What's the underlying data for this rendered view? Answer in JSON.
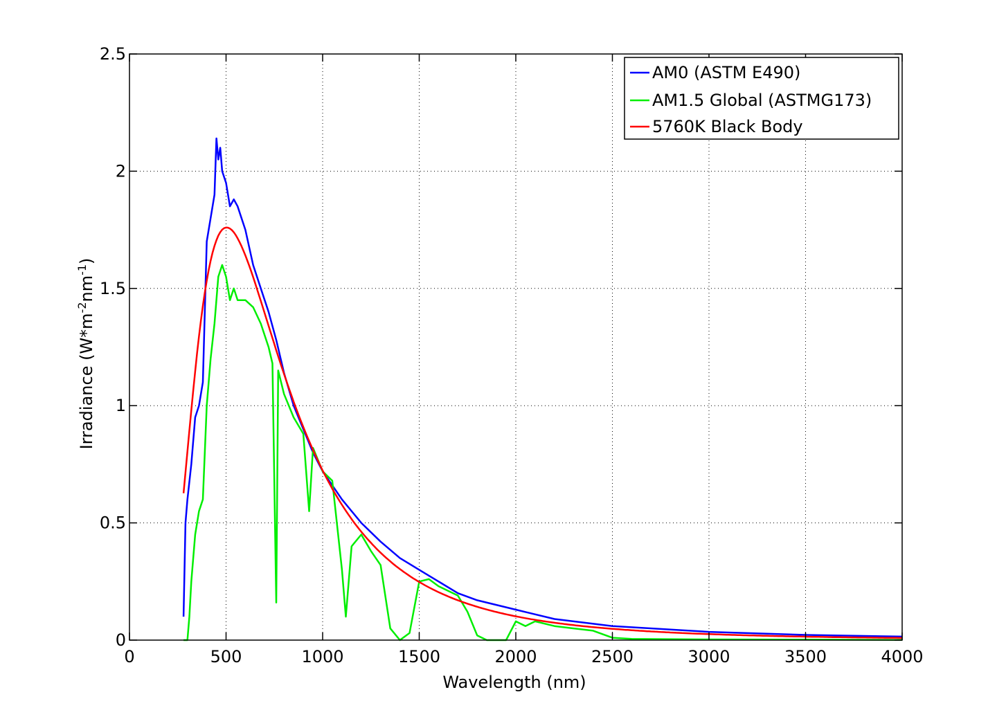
{
  "chart_data": {
    "type": "line",
    "title": "",
    "xlabel": "Wavelength (nm)",
    "ylabel": "Irradiance (W*m",
    "ylabel_sup1": "-2",
    "ylabel_mid": "nm",
    "ylabel_sup2": "-1",
    "ylabel_end": ")",
    "xlim": [
      0,
      4000
    ],
    "ylim": [
      0,
      2.5
    ],
    "xticks": [
      0,
      500,
      1000,
      1500,
      2000,
      2500,
      3000,
      3500,
      4000
    ],
    "yticks": [
      0,
      0.5,
      1,
      1.5,
      2,
      2.5
    ],
    "xtick_labels": [
      "0",
      "500",
      "1000",
      "1500",
      "2000",
      "2500",
      "3000",
      "3500",
      "4000"
    ],
    "ytick_labels": [
      "0",
      "0.5",
      "1",
      "1.5",
      "2",
      "2.5"
    ],
    "grid": true,
    "legend_position": "top-right",
    "series": [
      {
        "name": "AM0 (ASTM E490)",
        "color": "#0000ff",
        "x": [
          280,
          290,
          300,
          320,
          340,
          360,
          380,
          400,
          420,
          440,
          450,
          460,
          470,
          480,
          500,
          520,
          540,
          560,
          580,
          600,
          640,
          680,
          720,
          760,
          800,
          850,
          900,
          950,
          1000,
          1100,
          1200,
          1300,
          1400,
          1500,
          1600,
          1700,
          1800,
          2000,
          2200,
          2500,
          3000,
          3500,
          4000
        ],
        "y": [
          0.1,
          0.5,
          0.6,
          0.75,
          0.95,
          1.0,
          1.1,
          1.7,
          1.8,
          1.9,
          2.14,
          2.05,
          2.1,
          2.0,
          1.95,
          1.85,
          1.88,
          1.85,
          1.8,
          1.75,
          1.6,
          1.5,
          1.4,
          1.28,
          1.14,
          1.0,
          0.9,
          0.8,
          0.72,
          0.6,
          0.5,
          0.42,
          0.35,
          0.3,
          0.25,
          0.2,
          0.17,
          0.13,
          0.09,
          0.06,
          0.035,
          0.022,
          0.015
        ]
      },
      {
        "name": "AM1.5 Global (ASTMG173)",
        "color": "#00ee00",
        "x": [
          280,
          300,
          310,
          320,
          340,
          360,
          380,
          400,
          420,
          440,
          460,
          480,
          500,
          520,
          540,
          560,
          600,
          640,
          680,
          700,
          720,
          740,
          760,
          770,
          800,
          850,
          900,
          930,
          950,
          1000,
          1050,
          1100,
          1120,
          1150,
          1200,
          1250,
          1300,
          1350,
          1400,
          1450,
          1500,
          1550,
          1600,
          1700,
          1750,
          1800,
          1850,
          1950,
          2000,
          2050,
          2100,
          2200,
          2300,
          2400,
          2500,
          2600,
          3000,
          3500,
          4000
        ],
        "y": [
          0.0,
          0.0,
          0.1,
          0.25,
          0.45,
          0.55,
          0.6,
          1.0,
          1.2,
          1.35,
          1.55,
          1.6,
          1.55,
          1.45,
          1.5,
          1.45,
          1.45,
          1.42,
          1.35,
          1.3,
          1.25,
          1.18,
          0.16,
          1.15,
          1.05,
          0.95,
          0.88,
          0.55,
          0.82,
          0.72,
          0.68,
          0.3,
          0.1,
          0.4,
          0.45,
          0.38,
          0.32,
          0.05,
          0.0,
          0.03,
          0.25,
          0.26,
          0.23,
          0.19,
          0.12,
          0.02,
          0.0,
          0.0,
          0.08,
          0.06,
          0.08,
          0.06,
          0.05,
          0.04,
          0.01,
          0.005,
          0.003,
          0.002,
          0.001
        ]
      },
      {
        "name": "5760K Black Body",
        "color": "#ff0000",
        "fn": "planck",
        "temperature_K": 5760,
        "x_range": [
          280,
          4000
        ],
        "y_scale_nm_peak": 1.76
      }
    ]
  }
}
